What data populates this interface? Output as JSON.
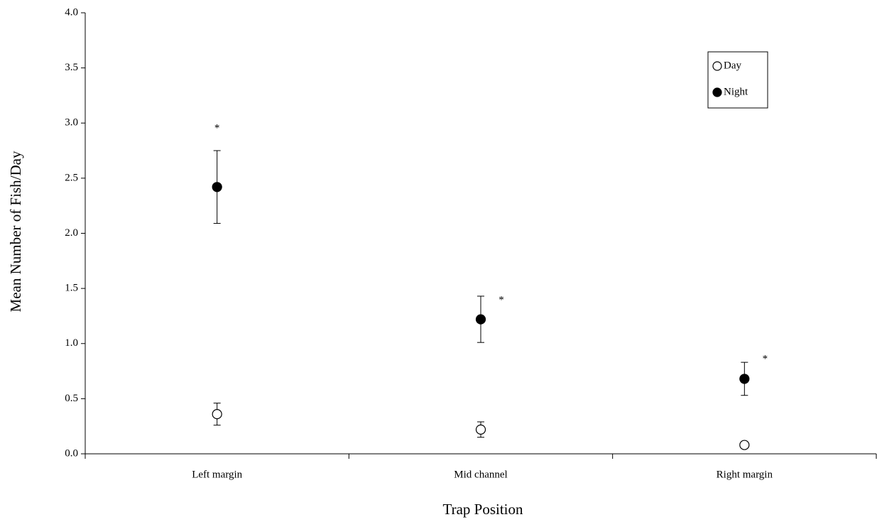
{
  "chart_data": {
    "type": "errorbar",
    "x_label": "Trap Position",
    "y_label": "Mean Number of Fish/Day",
    "categories": [
      "Left margin",
      "Mid channel",
      "Right margin"
    ],
    "series": [
      {
        "name": "Day",
        "color": "#ffffff",
        "values": [
          0.36,
          0.22,
          0.08
        ],
        "errors": [
          0.1,
          0.07,
          null
        ]
      },
      {
        "name": "Night",
        "color": "#000000",
        "values": [
          2.42,
          1.22,
          0.68
        ],
        "errors": [
          0.33,
          0.21,
          0.15
        ],
        "significance": [
          "*",
          "*",
          "*"
        ]
      }
    ],
    "ylim": [
      0,
      4
    ],
    "yticks": [
      {
        "value": 0,
        "label": "0.0"
      },
      {
        "value": 0.5,
        "label": "0.5"
      },
      {
        "value": 1,
        "label": "1.0"
      },
      {
        "value": 1.5,
        "label": "1.5"
      },
      {
        "value": 2,
        "label": "2.0"
      },
      {
        "value": 2.5,
        "label": "2.5"
      },
      {
        "value": 3,
        "label": "3.0"
      },
      {
        "value": 3.5,
        "label": "3.5"
      },
      {
        "value": 4,
        "label": "4.0"
      }
    ],
    "grid": false,
    "legend": "top-right"
  }
}
